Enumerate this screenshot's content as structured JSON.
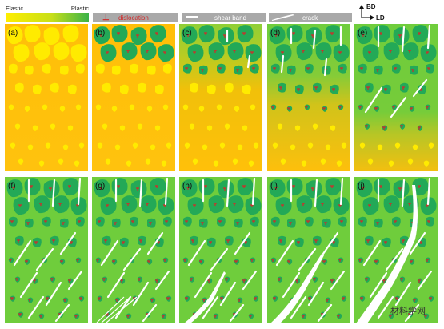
{
  "legend": {
    "scale_left": "Elastic",
    "scale_right": "Plastic",
    "dislocation_symbol": "⊥",
    "dislocation": "dislocation",
    "shear_band": "shear band",
    "crack": "crack"
  },
  "axes": {
    "bd": "BD",
    "ld": "LD"
  },
  "panels": [
    "(a)",
    "(b)",
    "(c)",
    "(d)",
    "(e)",
    "(f)",
    "(g)",
    "(h)",
    "(i)",
    "(j)"
  ],
  "watermark": "材料学网",
  "colors": {
    "elastic_yellow": "#ffeb00",
    "elastic_orange": "#ffbd0a",
    "plastic_green": "#6fcd3c",
    "grain_green": "#23a957",
    "dislocation_red": "#d22a2a",
    "band_white": "#ffffff",
    "legend_gray": "#a9a9a9"
  }
}
